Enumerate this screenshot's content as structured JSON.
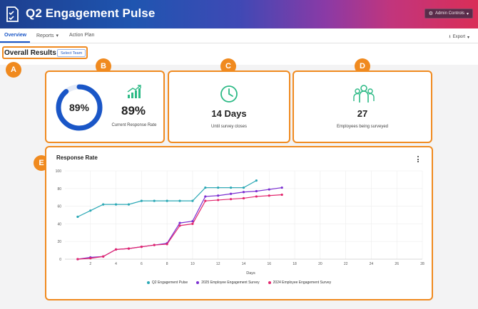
{
  "header": {
    "title": "Q2 Engagement Pulse",
    "admin_controls_label": "Admin Controls",
    "background_gradient": [
      "#1d3f8f",
      "#1f55b0",
      "#8a3aa6",
      "#d92e57"
    ]
  },
  "nav": {
    "tabs": [
      {
        "label": "Overview",
        "active": true
      },
      {
        "label": "Reports",
        "active": false
      },
      {
        "label": "Action Plan",
        "active": false
      }
    ],
    "export_label": "Export"
  },
  "page": {
    "title": "Overall Results",
    "select_team_label": "Select Team"
  },
  "annotations": [
    "A",
    "B",
    "C",
    "D",
    "E"
  ],
  "cards": {
    "response": {
      "gauge_value": "89%",
      "gauge_fraction": 0.89,
      "value": "89%",
      "label": "Current Response Rate"
    },
    "days": {
      "value": "14 Days",
      "label": "Until survey closes"
    },
    "employees": {
      "value": "27",
      "label": "Employees being surveyed"
    }
  },
  "colors": {
    "accent": "#1a56c7",
    "annotation": "#f08a1f",
    "icon_green": "#2dba86",
    "gauge_blue": "#1a56c7"
  },
  "chart": {
    "title": "Response Rate"
  },
  "chart_data": {
    "type": "line",
    "title": "Response Rate",
    "xlabel": "Days",
    "ylabel": "",
    "xlim": [
      0,
      28
    ],
    "ylim": [
      0,
      100
    ],
    "x_ticks": [
      2,
      4,
      6,
      8,
      10,
      12,
      14,
      16,
      18,
      20,
      22,
      24,
      26,
      28
    ],
    "y_ticks": [
      0,
      20,
      40,
      60,
      80,
      100
    ],
    "grid": true,
    "legend_position": "bottom",
    "series": [
      {
        "name": "Q2 Engagement Pulse",
        "color": "#2aa8b5",
        "x": [
          1,
          2,
          3,
          4,
          5,
          6,
          7,
          8,
          9,
          10,
          11,
          12,
          13,
          14,
          15
        ],
        "y": [
          48,
          55,
          62,
          62,
          62,
          66,
          66,
          66,
          66,
          66,
          81,
          81,
          81,
          81,
          89
        ]
      },
      {
        "name": "2025 Employee Engagement Survey",
        "color": "#7b2fd1",
        "x": [
          1,
          2,
          3,
          4,
          5,
          6,
          7,
          8,
          9,
          10,
          11,
          12,
          13,
          14,
          15,
          16,
          17
        ],
        "y": [
          0,
          2,
          3,
          11,
          12,
          14,
          16,
          18,
          41,
          43,
          71,
          72,
          74,
          76,
          77,
          79,
          81
        ]
      },
      {
        "name": "2024 Employee Engagement Survey",
        "color": "#e3266d",
        "x": [
          1,
          2,
          3,
          4,
          5,
          6,
          7,
          8,
          9,
          10,
          11,
          12,
          13,
          14,
          15,
          16,
          17
        ],
        "y": [
          0,
          1,
          3,
          11,
          12,
          14,
          16,
          17,
          38,
          40,
          66,
          67,
          68,
          69,
          71,
          72,
          73
        ]
      }
    ]
  }
}
